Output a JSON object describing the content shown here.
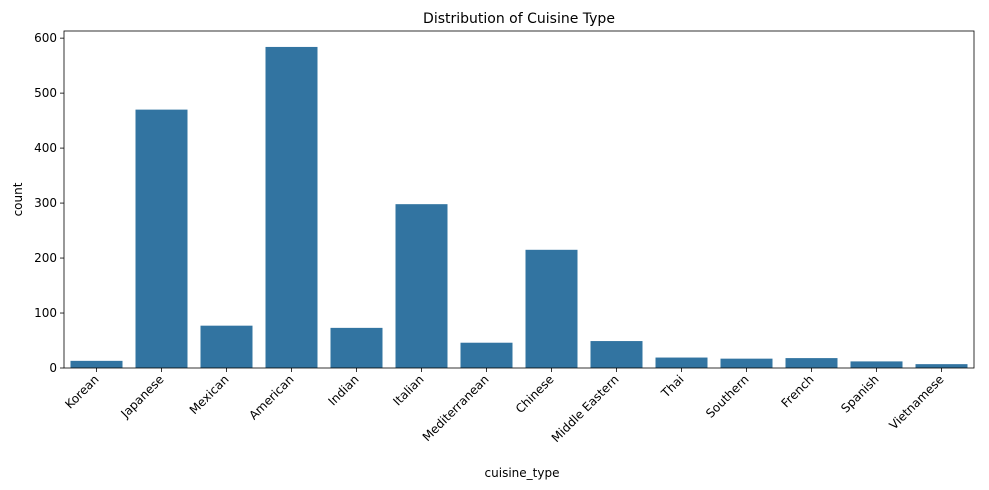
{
  "chart_data": {
    "type": "bar",
    "title": "Distribution of Cuisine Type",
    "xlabel": "cuisine_type",
    "ylabel": "count",
    "categories": [
      "Korean",
      "Japanese",
      "Mexican",
      "American",
      "Indian",
      "Italian",
      "Mediterranean",
      "Chinese",
      "Middle Eastern",
      "Thai",
      "Southern",
      "French",
      "Spanish",
      "Vietnamese"
    ],
    "values": [
      13,
      470,
      77,
      584,
      73,
      298,
      46,
      215,
      49,
      19,
      17,
      18,
      12,
      7
    ],
    "ylim": [
      0,
      613
    ],
    "yticks": [
      0,
      100,
      200,
      300,
      400,
      500,
      600
    ],
    "bar_color": "#3274a1",
    "grid": false,
    "legend": "none"
  }
}
